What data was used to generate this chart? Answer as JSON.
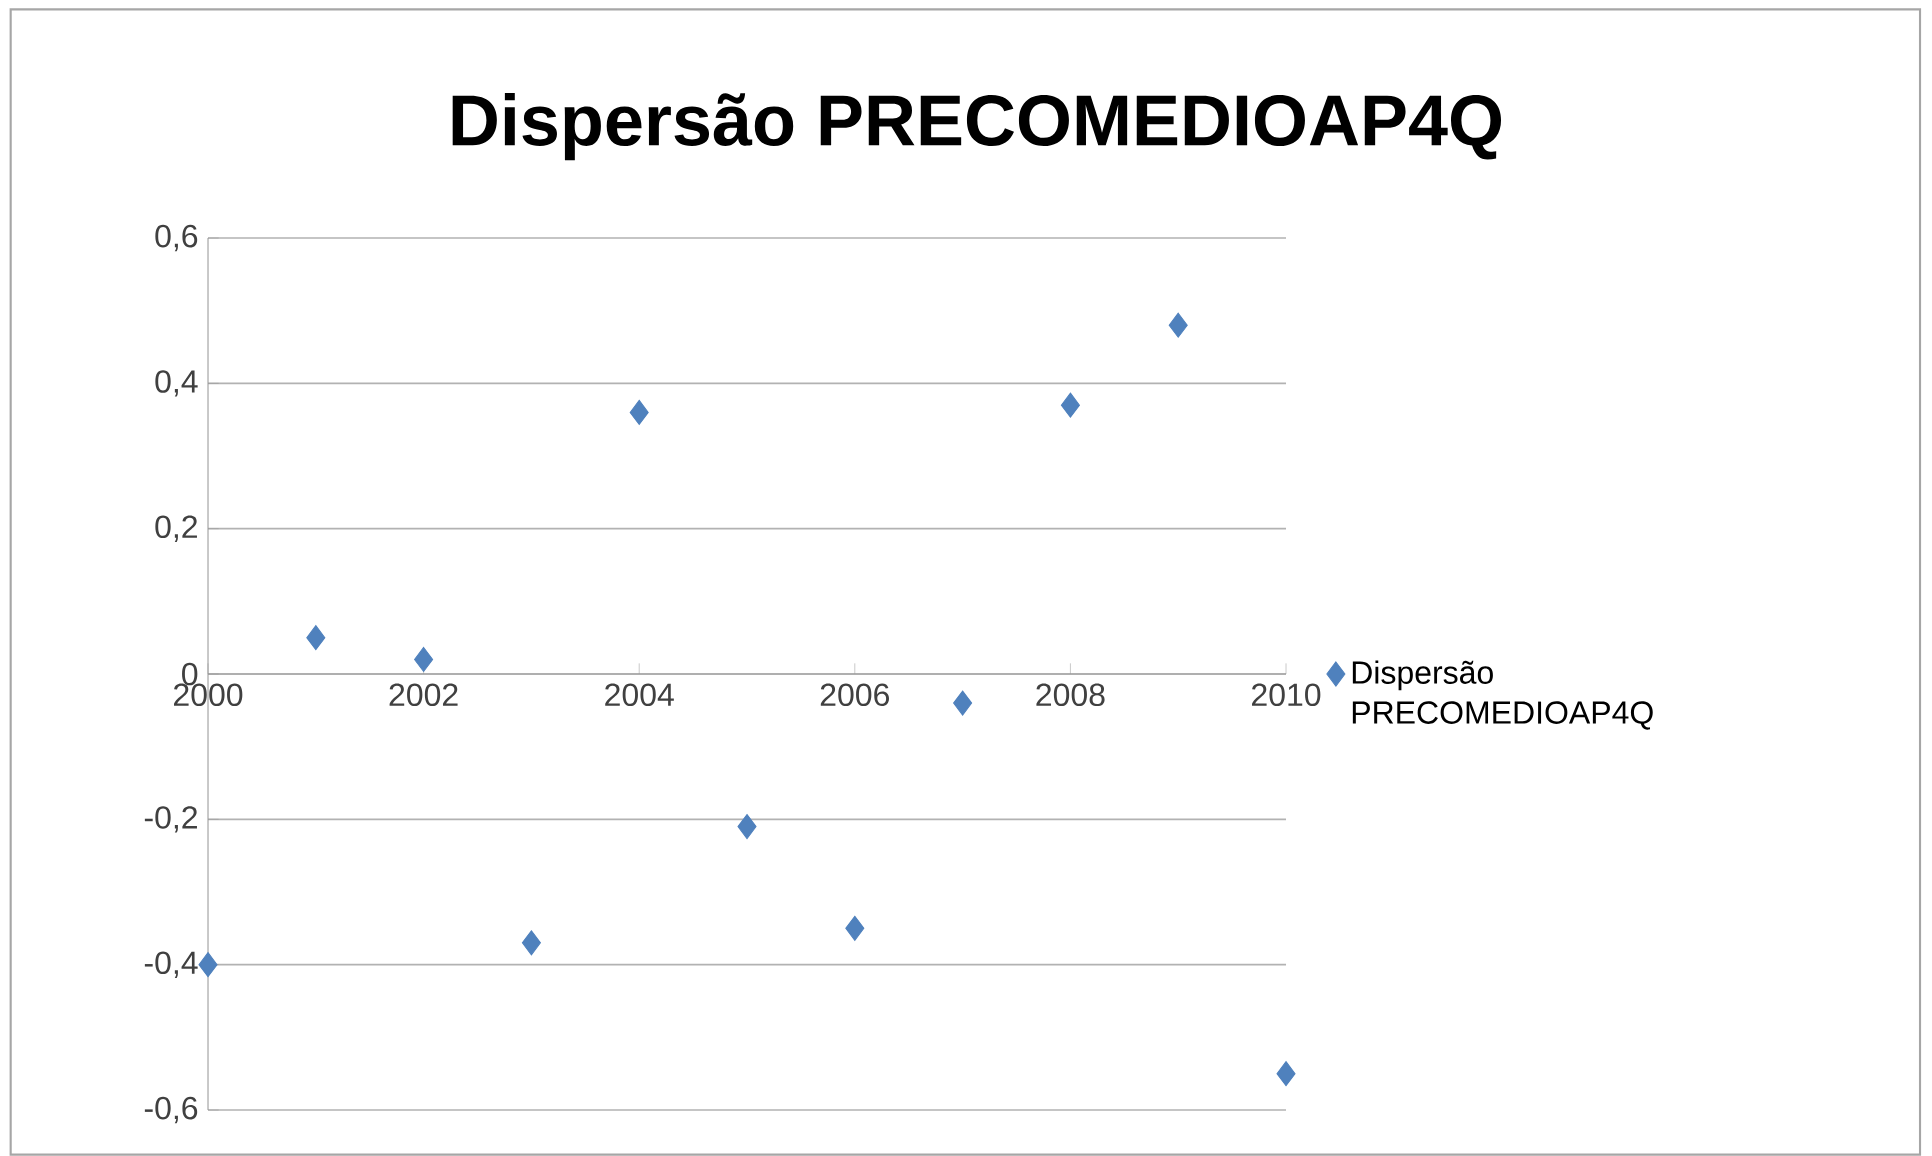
{
  "chart_data": {
    "type": "scatter",
    "title": "Dispersão PRECOMEDIOAP4Q",
    "x": [
      2000,
      2001,
      2002,
      2003,
      2004,
      2005,
      2006,
      2007,
      2008,
      2009,
      2010
    ],
    "series": [
      {
        "name": "Dispersão PRECOMEDIOAP4Q",
        "color": "#4f81bd",
        "values": [
          -0.4,
          0.05,
          0.02,
          -0.37,
          0.36,
          -0.21,
          -0.35,
          -0.04,
          0.37,
          0.48,
          -0.55
        ]
      }
    ],
    "xlim": [
      2000,
      2010
    ],
    "xticks": [
      2000,
      2002,
      2004,
      2006,
      2008,
      2010
    ],
    "ylim": [
      -0.6,
      0.6
    ],
    "yticks": [
      {
        "value": 0.6,
        "label": "0,6"
      },
      {
        "value": 0.4,
        "label": "0,4"
      },
      {
        "value": 0.2,
        "label": "0,2"
      },
      {
        "value": 0,
        "label": "0"
      },
      {
        "value": -0.2,
        "label": "-0,2"
      },
      {
        "value": -0.4,
        "label": "-0,4"
      },
      {
        "value": -0.6,
        "label": "-0,6"
      }
    ],
    "grid": "y",
    "legend": "right",
    "marker": "diamond"
  }
}
